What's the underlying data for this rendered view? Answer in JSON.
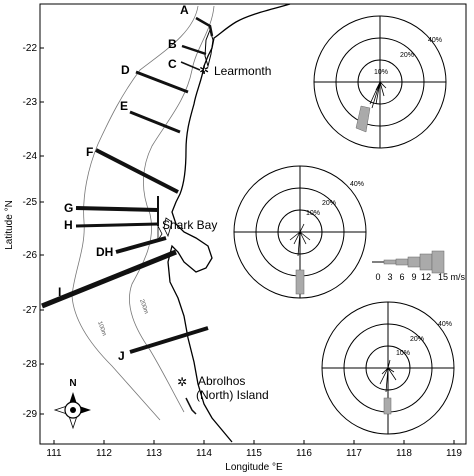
{
  "axes": {
    "xlabel": "Longitude °E",
    "ylabel": "Latitude °N",
    "xticks": [
      "111",
      "112",
      "113",
      "114",
      "115",
      "116",
      "117",
      "118",
      "119"
    ],
    "yticks": [
      "-22",
      "-23",
      "-24",
      "-25",
      "-26",
      "-27",
      "-28",
      "-29"
    ],
    "xlim": [
      110.8,
      119.2
    ],
    "ylim": [
      -29.6,
      -21.4
    ]
  },
  "transect_labels": [
    "A",
    "B",
    "C",
    "D",
    "E",
    "F",
    "G",
    "H",
    "DH",
    "I",
    "J"
  ],
  "places": {
    "learmonth": "Learmonth",
    "shark_bay": "Shark Bay",
    "abrolhos_1": "Abrolhos",
    "abrolhos_2": "(North) Island"
  },
  "contours": {
    "c100": "100m",
    "c200": "200m"
  },
  "wind_roses": [
    {
      "name": "north",
      "labels": [
        "10%",
        "20%",
        "40%"
      ]
    },
    {
      "name": "middle",
      "labels": [
        "10%",
        "20%",
        "40%"
      ]
    },
    {
      "name": "south",
      "labels": [
        "10%",
        "20%",
        "40%"
      ]
    }
  ],
  "legend": {
    "ticks": [
      "0",
      "3",
      "6",
      "9",
      "12",
      "15 m/s"
    ]
  },
  "compass": {
    "north": "N"
  },
  "colors": {
    "frame": "#000000",
    "grey": "#999999",
    "track": "#111111"
  }
}
